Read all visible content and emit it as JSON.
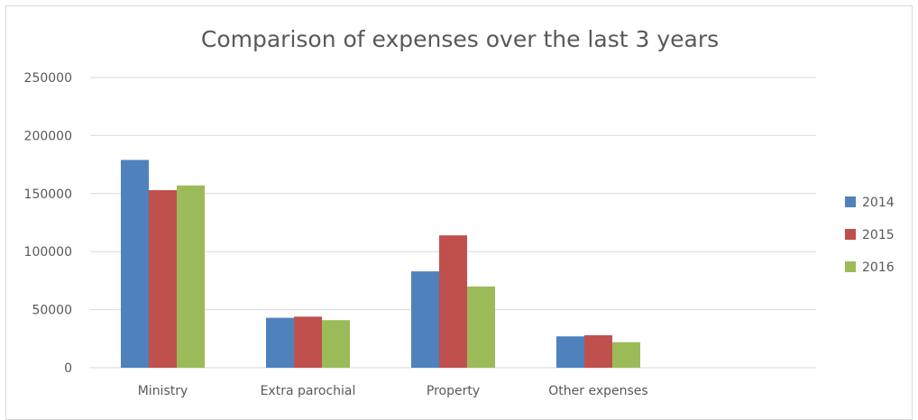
{
  "chart_data": {
    "type": "bar",
    "title": "Comparison of expenses over the last 3 years",
    "xlabel": "",
    "ylabel": "",
    "categories": [
      "Ministry",
      "Extra parochial",
      "Property",
      "Other expenses"
    ],
    "series": [
      {
        "name": "2014",
        "color": "#4f81bd",
        "values": [
          179000,
          43000,
          83000,
          27000
        ]
      },
      {
        "name": "2015",
        "color": "#c0504d",
        "values": [
          153000,
          44000,
          114000,
          28000
        ]
      },
      {
        "name": "2016",
        "color": "#9bbb59",
        "values": [
          157000,
          41000,
          70000,
          22000
        ]
      }
    ],
    "ylim": [
      0,
      250000
    ],
    "yticks": [
      "0",
      "50000",
      "100000",
      "150000",
      "200000",
      "250000"
    ],
    "grid": true,
    "legend_position": "right"
  }
}
